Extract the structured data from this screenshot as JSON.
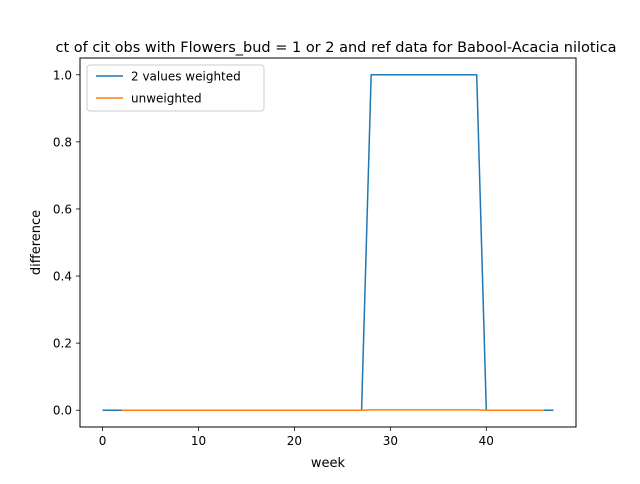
{
  "chart_data": {
    "type": "line",
    "title": "ct of cit obs with Flowers_bud = 1 or 2 and ref data for Babool-Acacia nilotica",
    "xlabel": "week",
    "ylabel": "difference",
    "xlim": [
      -2.35,
      49.35
    ],
    "ylim": [
      -0.05,
      1.05
    ],
    "xticks": [
      0,
      10,
      20,
      30,
      40
    ],
    "yticks": [
      0.0,
      0.2,
      0.4,
      0.6,
      0.8,
      1.0
    ],
    "xtick_labels": [
      "0",
      "10",
      "20",
      "30",
      "40"
    ],
    "ytick_labels": [
      "0.0",
      "0.2",
      "0.4",
      "0.6",
      "0.8",
      "1.0"
    ],
    "grid": false,
    "legend_position": "top-left",
    "series": [
      {
        "name": "2 values weighted",
        "color": "#1f77b4",
        "x": [
          0,
          27,
          28,
          39,
          40,
          47
        ],
        "y": [
          0,
          0,
          1,
          1,
          0,
          0
        ]
      },
      {
        "name": "unweighted",
        "color": "#ff7f0e",
        "x": [
          2,
          27,
          28,
          39,
          40,
          46
        ],
        "y": [
          0,
          0,
          0.001,
          0.001,
          0,
          0
        ]
      }
    ]
  }
}
